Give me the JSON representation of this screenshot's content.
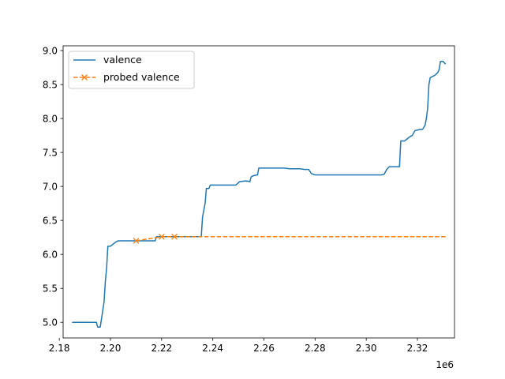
{
  "chart_data": {
    "type": "line",
    "title": "",
    "xlabel": "",
    "ylabel": "",
    "x_offset_label": "1e6",
    "xlim": [
      2.1815,
      2.3345
    ],
    "ylim": [
      4.77,
      9.07
    ],
    "x_ticks": [
      2.18,
      2.2,
      2.22,
      2.24,
      2.26,
      2.28,
      2.3,
      2.32
    ],
    "x_tick_labels": [
      "2.18",
      "2.20",
      "2.22",
      "2.24",
      "2.26",
      "2.28",
      "2.30",
      "2.32"
    ],
    "y_ticks": [
      5.0,
      5.5,
      6.0,
      6.5,
      7.0,
      7.5,
      8.0,
      8.5,
      9.0
    ],
    "y_tick_labels": [
      "5.0",
      "5.5",
      "6.0",
      "6.5",
      "7.0",
      "7.5",
      "8.0",
      "8.5",
      "9.0"
    ],
    "grid": false,
    "legend_position": "top-left",
    "series": [
      {
        "name": "valence",
        "color": "#1f77b4",
        "style": "solid",
        "marker": "none",
        "points": [
          [
            2.185,
            5.0
          ],
          [
            2.1945,
            5.0
          ],
          [
            2.195,
            4.93
          ],
          [
            2.196,
            4.93
          ],
          [
            2.1965,
            5.05
          ],
          [
            2.1975,
            5.3
          ],
          [
            2.198,
            5.6
          ],
          [
            2.1985,
            5.8
          ],
          [
            2.199,
            6.12
          ],
          [
            2.2,
            6.12
          ],
          [
            2.201,
            6.15
          ],
          [
            2.202,
            6.18
          ],
          [
            2.203,
            6.2
          ],
          [
            2.205,
            6.2
          ],
          [
            2.208,
            6.2
          ],
          [
            2.21,
            6.2
          ],
          [
            2.2175,
            6.2
          ],
          [
            2.218,
            6.26
          ],
          [
            2.2355,
            6.26
          ],
          [
            2.236,
            6.55
          ],
          [
            2.237,
            6.75
          ],
          [
            2.2375,
            6.97
          ],
          [
            2.2385,
            6.97
          ],
          [
            2.239,
            7.02
          ],
          [
            2.242,
            7.02
          ],
          [
            2.246,
            7.02
          ],
          [
            2.249,
            7.02
          ],
          [
            2.2505,
            7.07
          ],
          [
            2.2525,
            7.08
          ],
          [
            2.2535,
            7.08
          ],
          [
            2.2545,
            7.07
          ],
          [
            2.255,
            7.14
          ],
          [
            2.256,
            7.16
          ],
          [
            2.2575,
            7.17
          ],
          [
            2.258,
            7.27
          ],
          [
            2.264,
            7.27
          ],
          [
            2.268,
            7.27
          ],
          [
            2.27,
            7.26
          ],
          [
            2.274,
            7.26
          ],
          [
            2.276,
            7.25
          ],
          [
            2.2775,
            7.25
          ],
          [
            2.2785,
            7.19
          ],
          [
            2.28,
            7.17
          ],
          [
            2.285,
            7.17
          ],
          [
            2.295,
            7.17
          ],
          [
            2.306,
            7.17
          ],
          [
            2.307,
            7.18
          ],
          [
            2.308,
            7.25
          ],
          [
            2.309,
            7.29
          ],
          [
            2.313,
            7.29
          ],
          [
            2.3135,
            7.67
          ],
          [
            2.315,
            7.67
          ],
          [
            2.316,
            7.7
          ],
          [
            2.317,
            7.73
          ],
          [
            2.318,
            7.75
          ],
          [
            2.319,
            7.82
          ],
          [
            2.321,
            7.84
          ],
          [
            2.322,
            7.84
          ],
          [
            2.323,
            7.9
          ],
          [
            2.3235,
            8.0
          ],
          [
            2.324,
            8.15
          ],
          [
            2.3245,
            8.5
          ],
          [
            2.325,
            8.6
          ],
          [
            2.326,
            8.62
          ],
          [
            2.327,
            8.64
          ],
          [
            2.328,
            8.68
          ],
          [
            2.3285,
            8.72
          ],
          [
            2.329,
            8.84
          ],
          [
            2.33,
            8.84
          ],
          [
            2.331,
            8.8
          ]
        ]
      },
      {
        "name": "probed valence",
        "color": "#ff7f0e",
        "style": "dashed",
        "marker": "x",
        "points": [
          [
            2.21,
            6.2
          ],
          [
            2.22,
            6.26
          ],
          [
            2.225,
            6.26
          ],
          [
            2.331,
            6.26
          ]
        ],
        "marker_points": [
          [
            2.21,
            6.2
          ],
          [
            2.22,
            6.26
          ],
          [
            2.225,
            6.26
          ]
        ]
      }
    ]
  }
}
